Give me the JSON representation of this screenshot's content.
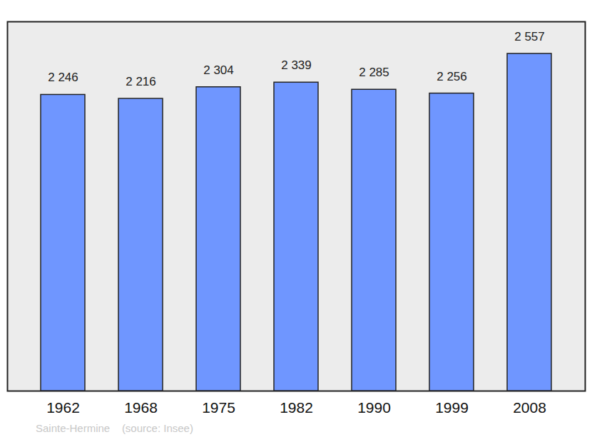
{
  "chart_data": {
    "type": "bar",
    "categories": [
      "1962",
      "1968",
      "1975",
      "1982",
      "1990",
      "1999",
      "2008"
    ],
    "values": [
      2246,
      2216,
      2304,
      2339,
      2285,
      2256,
      2557
    ],
    "value_labels": [
      "2 246",
      "2 216",
      "2 304",
      "2 339",
      "2 285",
      "2 256",
      "2 557"
    ],
    "data_labels": true,
    "color": "#6f96ff",
    "ylim": [
      0,
      2800
    ],
    "tick_labels": "x",
    "grid": false,
    "caption": "Sainte-Hermine    (source: Insee)"
  }
}
